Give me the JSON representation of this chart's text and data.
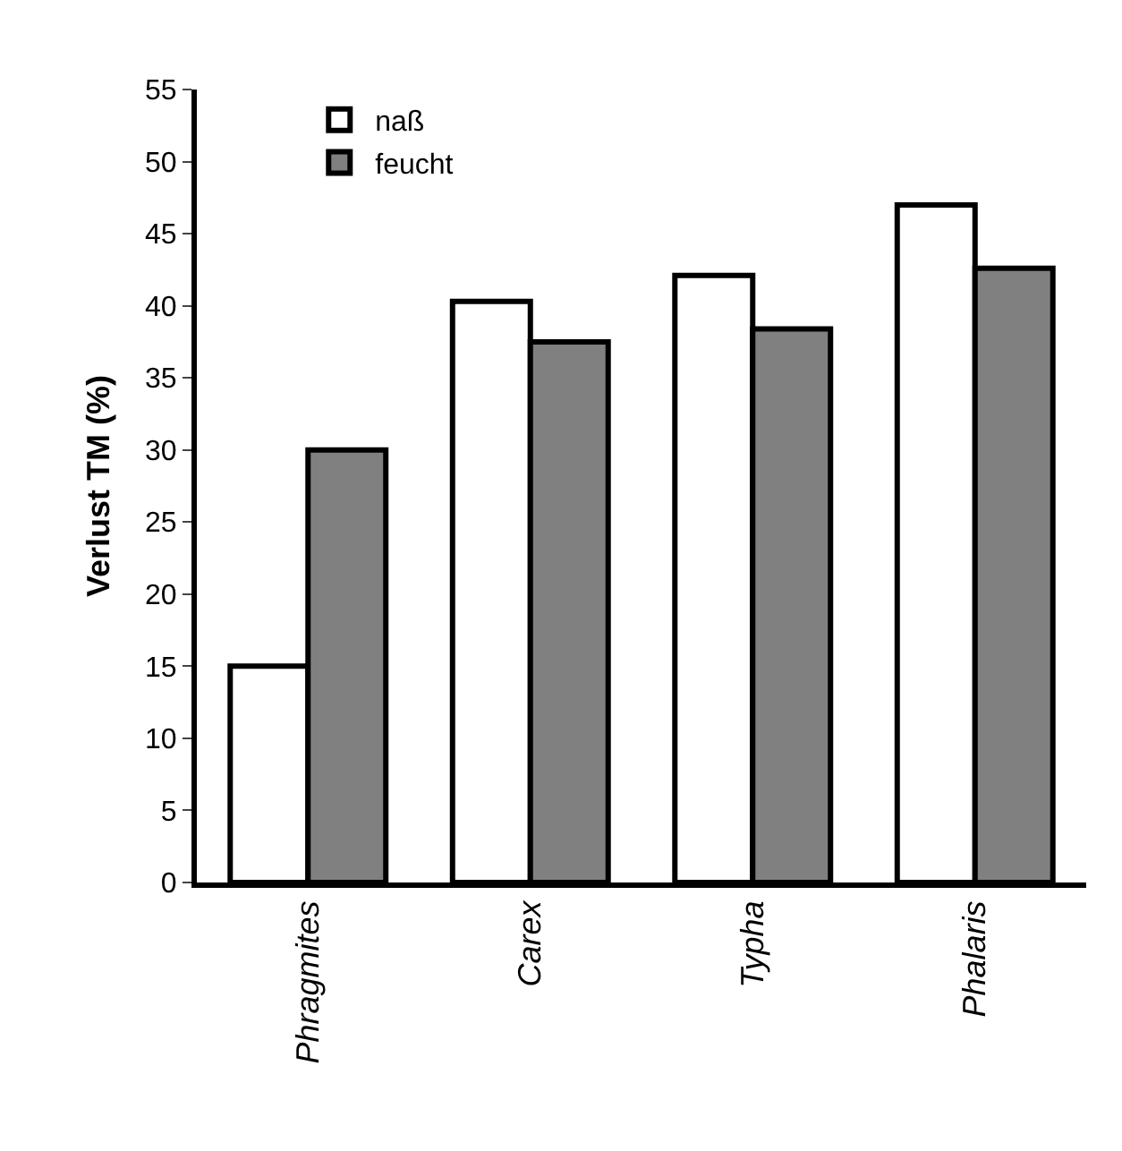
{
  "chart_data": {
    "type": "bar",
    "ylabel": "Verlust TM (%)",
    "categories": [
      "Phragmites",
      "Carex",
      "Typha",
      "Phalaris"
    ],
    "series": [
      {
        "name": "naß",
        "color": "#ffffff",
        "values": [
          15,
          40.3,
          42.1,
          47
        ]
      },
      {
        "name": "feucht",
        "color": "#808080",
        "values": [
          30,
          37.5,
          38.4,
          42.6
        ]
      }
    ],
    "ylim": [
      0,
      55
    ],
    "yticks": [
      0,
      5,
      10,
      15,
      20,
      25,
      30,
      35,
      40,
      45,
      50,
      55
    ],
    "grid": false,
    "legend": "top left"
  }
}
